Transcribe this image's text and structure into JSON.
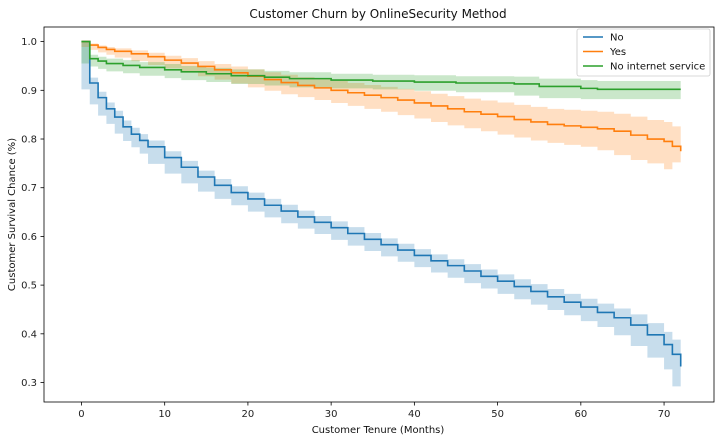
{
  "chart_data": {
    "type": "line",
    "title": "Customer Churn by OnlineSecurity Method",
    "xlabel": "Customer Tenure (Months)",
    "ylabel": "Customer Survival Chance (%)",
    "xlim": [
      -4.5,
      76
    ],
    "ylim": [
      0.26,
      1.03
    ],
    "x_ticks": [
      0,
      10,
      20,
      30,
      40,
      50,
      60,
      70
    ],
    "y_ticks": [
      0.3,
      0.4,
      0.5,
      0.6,
      0.7,
      0.8,
      0.9,
      1.0
    ],
    "x_tick_labels": [
      "0",
      "10",
      "20",
      "30",
      "40",
      "50",
      "60",
      "70"
    ],
    "y_tick_labels": [
      "0.3",
      "0.4",
      "0.5",
      "0.6",
      "0.7",
      "0.8",
      "0.9",
      "1.0"
    ],
    "grid": false,
    "legend_position": "top-right",
    "step": true,
    "series": [
      {
        "name": "No",
        "color": "#1f77b4",
        "x": [
          0,
          1,
          2,
          3,
          4,
          5,
          6,
          7,
          8,
          10,
          12,
          14,
          16,
          18,
          20,
          22,
          24,
          26,
          28,
          30,
          32,
          34,
          36,
          38,
          40,
          42,
          44,
          46,
          48,
          50,
          52,
          54,
          56,
          58,
          60,
          62,
          64,
          66,
          68,
          70,
          71,
          72
        ],
        "y": [
          1.0,
          0.915,
          0.885,
          0.862,
          0.845,
          0.825,
          0.81,
          0.797,
          0.784,
          0.762,
          0.742,
          0.722,
          0.705,
          0.69,
          0.677,
          0.664,
          0.652,
          0.64,
          0.629,
          0.618,
          0.606,
          0.594,
          0.583,
          0.572,
          0.561,
          0.55,
          0.54,
          0.529,
          0.518,
          0.508,
          0.497,
          0.487,
          0.476,
          0.465,
          0.455,
          0.444,
          0.433,
          0.418,
          0.398,
          0.378,
          0.358,
          0.333
        ],
        "ci_lower": [
          1.0,
          0.902,
          0.871,
          0.848,
          0.831,
          0.811,
          0.796,
          0.783,
          0.77,
          0.749,
          0.729,
          0.709,
          0.692,
          0.677,
          0.664,
          0.651,
          0.639,
          0.627,
          0.616,
          0.605,
          0.593,
          0.581,
          0.57,
          0.559,
          0.548,
          0.537,
          0.526,
          0.515,
          0.504,
          0.493,
          0.482,
          0.471,
          0.46,
          0.449,
          0.438,
          0.426,
          0.414,
          0.397,
          0.375,
          0.351,
          0.327,
          0.292
        ],
        "ci_upper": [
          1.0,
          0.926,
          0.897,
          0.875,
          0.858,
          0.838,
          0.823,
          0.81,
          0.797,
          0.775,
          0.755,
          0.735,
          0.718,
          0.703,
          0.69,
          0.677,
          0.665,
          0.653,
          0.642,
          0.631,
          0.619,
          0.607,
          0.596,
          0.585,
          0.574,
          0.563,
          0.553,
          0.543,
          0.532,
          0.522,
          0.512,
          0.502,
          0.492,
          0.482,
          0.472,
          0.462,
          0.452,
          0.44,
          0.422,
          0.404,
          0.388,
          0.372
        ]
      },
      {
        "name": "Yes",
        "color": "#ff7f0e",
        "x": [
          0,
          1,
          2,
          3,
          4,
          6,
          8,
          10,
          12,
          14,
          16,
          18,
          20,
          22,
          24,
          26,
          28,
          30,
          32,
          34,
          36,
          38,
          40,
          42,
          44,
          46,
          48,
          50,
          52,
          54,
          56,
          58,
          60,
          62,
          64,
          66,
          68,
          70,
          71,
          72
        ],
        "y": [
          1.0,
          0.993,
          0.988,
          0.984,
          0.98,
          0.975,
          0.969,
          0.962,
          0.956,
          0.949,
          0.942,
          0.936,
          0.929,
          0.922,
          0.916,
          0.91,
          0.905,
          0.9,
          0.895,
          0.89,
          0.885,
          0.88,
          0.874,
          0.868,
          0.862,
          0.856,
          0.851,
          0.846,
          0.84,
          0.835,
          0.83,
          0.827,
          0.824,
          0.821,
          0.816,
          0.808,
          0.8,
          0.795,
          0.785,
          0.775
        ],
        "ci_lower": [
          1.0,
          0.989,
          0.983,
          0.978,
          0.973,
          0.967,
          0.96,
          0.952,
          0.945,
          0.937,
          0.929,
          0.922,
          0.914,
          0.906,
          0.899,
          0.892,
          0.886,
          0.88,
          0.874,
          0.868,
          0.862,
          0.856,
          0.849,
          0.842,
          0.835,
          0.828,
          0.822,
          0.816,
          0.809,
          0.803,
          0.797,
          0.792,
          0.788,
          0.784,
          0.777,
          0.767,
          0.757,
          0.75,
          0.738,
          0.752
        ],
        "ci_upper": [
          1.0,
          0.996,
          0.992,
          0.989,
          0.986,
          0.982,
          0.977,
          0.971,
          0.966,
          0.96,
          0.954,
          0.949,
          0.943,
          0.937,
          0.932,
          0.927,
          0.923,
          0.919,
          0.915,
          0.911,
          0.907,
          0.903,
          0.898,
          0.893,
          0.888,
          0.883,
          0.879,
          0.875,
          0.87,
          0.866,
          0.862,
          0.86,
          0.858,
          0.856,
          0.852,
          0.846,
          0.839,
          0.835,
          0.826,
          0.798
        ]
      },
      {
        "name": "No internet service",
        "color": "#2ca02c",
        "x": [
          0,
          1,
          2,
          3,
          5,
          7,
          10,
          12,
          15,
          18,
          22,
          25,
          30,
          35,
          40,
          45,
          52,
          55,
          60,
          62,
          65,
          72
        ],
        "y": [
          1.0,
          0.965,
          0.96,
          0.955,
          0.951,
          0.947,
          0.942,
          0.938,
          0.934,
          0.93,
          0.927,
          0.924,
          0.921,
          0.919,
          0.917,
          0.915,
          0.913,
          0.908,
          0.904,
          0.902,
          0.902,
          0.902
        ],
        "ci_lower": [
          1.0,
          0.955,
          0.949,
          0.944,
          0.939,
          0.935,
          0.93,
          0.925,
          0.921,
          0.917,
          0.913,
          0.91,
          0.906,
          0.904,
          0.902,
          0.899,
          0.896,
          0.889,
          0.884,
          0.882,
          0.882,
          0.882
        ],
        "ci_upper": [
          1.0,
          0.973,
          0.969,
          0.965,
          0.962,
          0.958,
          0.954,
          0.95,
          0.946,
          0.943,
          0.94,
          0.937,
          0.934,
          0.932,
          0.931,
          0.929,
          0.928,
          0.924,
          0.921,
          0.919,
          0.919,
          0.919
        ]
      }
    ]
  }
}
